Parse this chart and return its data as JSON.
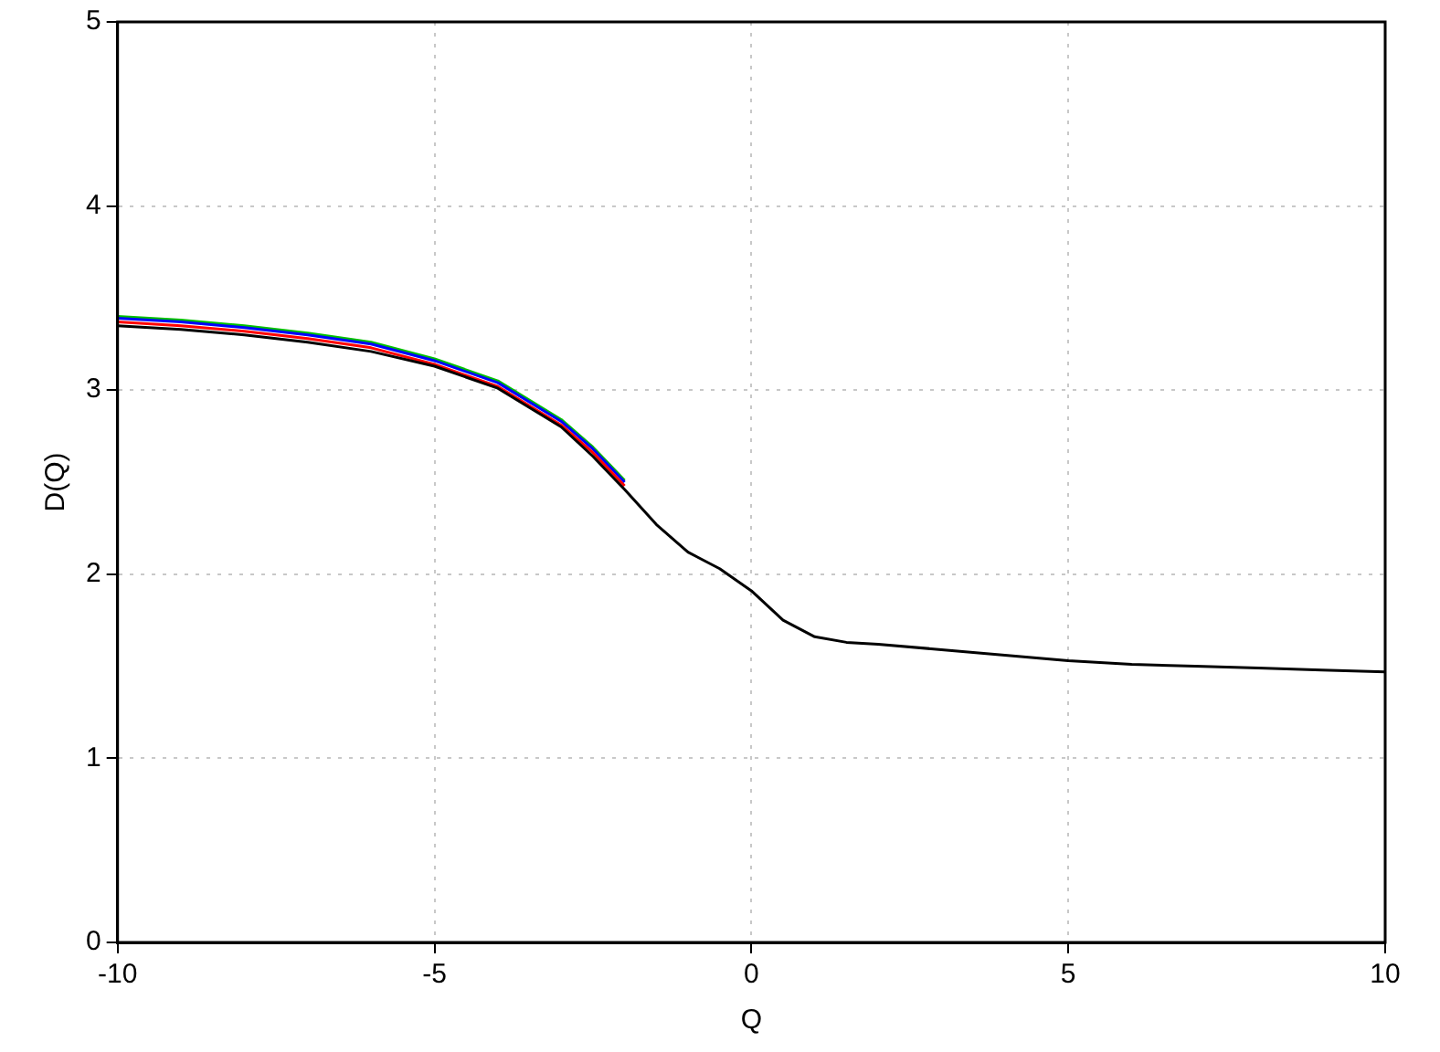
{
  "chart_data": {
    "type": "line",
    "xlabel": "Q",
    "ylabel": "D(Q)",
    "x": [
      -10,
      -9,
      -8,
      -7,
      -6,
      -5,
      -4,
      -3,
      -2.5,
      -2,
      -1.5,
      -1,
      -0.5,
      0,
      0.5,
      1,
      1.5,
      2,
      3,
      4,
      5,
      6,
      7,
      8,
      9,
      10
    ],
    "series": [
      {
        "color": "#00c000",
        "values": [
          3.4,
          3.38,
          3.35,
          3.31,
          3.26,
          3.17,
          3.05,
          2.84,
          2.69,
          2.51,
          null,
          null,
          null,
          null,
          null,
          null,
          null,
          null,
          null,
          null,
          null,
          null,
          null,
          null,
          null,
          null
        ]
      },
      {
        "color": "#0000ff",
        "values": [
          3.39,
          3.37,
          3.34,
          3.3,
          3.25,
          3.16,
          3.04,
          2.83,
          2.68,
          2.5,
          null,
          null,
          null,
          null,
          null,
          null,
          null,
          null,
          null,
          null,
          null,
          null,
          null,
          null,
          null,
          null
        ]
      },
      {
        "color": "#ff0000",
        "values": [
          3.37,
          3.35,
          3.32,
          3.28,
          3.23,
          3.14,
          3.02,
          2.81,
          2.66,
          2.48,
          null,
          null,
          null,
          null,
          null,
          null,
          null,
          null,
          null,
          null,
          null,
          null,
          null,
          null,
          null,
          null
        ]
      },
      {
        "color": "#000000",
        "values": [
          3.35,
          3.33,
          3.3,
          3.26,
          3.21,
          3.13,
          3.01,
          2.8,
          2.64,
          2.46,
          2.27,
          2.12,
          2.03,
          1.91,
          1.75,
          1.66,
          1.63,
          1.62,
          1.59,
          1.56,
          1.53,
          1.51,
          1.5,
          1.49,
          1.48,
          1.47
        ]
      }
    ],
    "xlim": [
      -10,
      10
    ],
    "xticks": [
      -10,
      -5,
      0,
      5,
      10
    ],
    "ylim": [
      0,
      5
    ],
    "yticks": [
      0,
      1,
      2,
      3,
      4,
      5
    ],
    "grid": true,
    "legend": false,
    "marker": "none",
    "line_style": "solid"
  }
}
